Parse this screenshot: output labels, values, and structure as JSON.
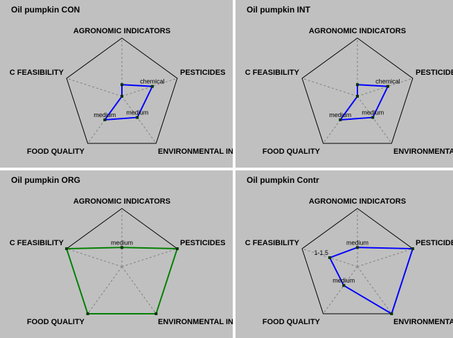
{
  "chart_data": [
    {
      "type": "radar",
      "title": "Oil pumpkin CON",
      "axes": [
        "AGRONOMIC INDICATORS",
        "PESTICIDES",
        "ENVIRONMENTAL IN",
        "FOOD QUALITY",
        "C FEASIBILITY"
      ],
      "series": [
        {
          "values": [
            0.2,
            0.55,
            0.45,
            0.5,
            0.0
          ]
        }
      ],
      "data_labels": [
        "",
        "chemical",
        "medium",
        "medium",
        ""
      ],
      "color": "#0000ff",
      "range": [
        0,
        1
      ]
    },
    {
      "type": "radar",
      "title": "Oil pumpkin INT",
      "axes": [
        "AGRONOMIC INDICATORS",
        "PESTICIDES",
        "ENVIRONMENTAL I",
        "FOOD QUALITY",
        "C FEASIBILITY"
      ],
      "series": [
        {
          "values": [
            0.2,
            0.55,
            0.45,
            0.5,
            0.0
          ]
        }
      ],
      "data_labels": [
        "",
        "chemical",
        "medium",
        "medium",
        ""
      ],
      "color": "#0000ff",
      "range": [
        0,
        1
      ]
    },
    {
      "type": "radar",
      "title": "Oil pumpkin ORG",
      "axes": [
        "AGRONOMIC INDICATORS",
        "PESTICIDES",
        "ENVIRONMENTAL IN",
        "FOOD QUALITY",
        "C FEASIBILITY"
      ],
      "series": [
        {
          "values": [
            0.33,
            1.0,
            1.0,
            1.0,
            1.0
          ]
        }
      ],
      "data_labels": [
        "medium",
        "",
        "",
        "",
        ""
      ],
      "color": "#008000",
      "range": [
        0,
        1
      ]
    },
    {
      "type": "radar",
      "title": "Oil pumpkin Contr",
      "axes": [
        "AGRONOMIC INDICATORS",
        "PESTICIDES",
        "ENVIRONMENTAL I",
        "FOOD QUALITY",
        "C FEASIBILITY"
      ],
      "series": [
        {
          "values": [
            0.33,
            1.0,
            1.0,
            0.4,
            0.5
          ]
        }
      ],
      "data_labels": [
        "medium",
        "",
        "",
        "medium",
        "1-1.5"
      ],
      "color": "#0000ff",
      "range": [
        0,
        1
      ]
    }
  ]
}
